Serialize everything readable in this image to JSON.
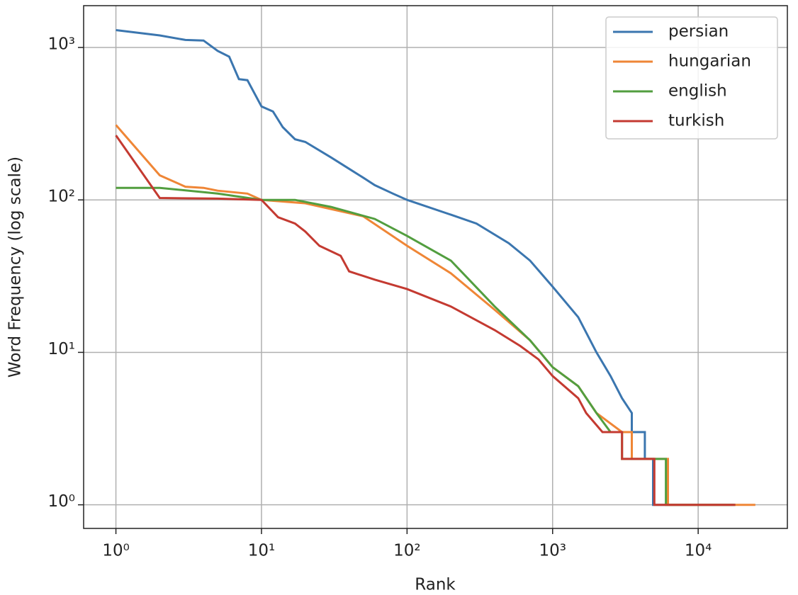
{
  "chart_data": {
    "type": "line",
    "x_label": "Rank",
    "y_label": "Word Frequency (log scale)",
    "xscale": "log",
    "yscale": "log",
    "grid": true,
    "legend": "upper right",
    "xlim": [
      0.6,
      41000
    ],
    "ylim": [
      0.7,
      1880
    ],
    "xticks": [
      {
        "value": 1,
        "label": "10⁰"
      },
      {
        "value": 10,
        "label": "10¹"
      },
      {
        "value": 100,
        "label": "10²"
      },
      {
        "value": 1000,
        "label": "10³"
      },
      {
        "value": 10000,
        "label": "10⁴"
      }
    ],
    "yticks": [
      {
        "value": 1,
        "label": "10⁰"
      },
      {
        "value": 10,
        "label": "10¹"
      },
      {
        "value": 100,
        "label": "10²"
      },
      {
        "value": 1000,
        "label": "10³"
      }
    ],
    "series": [
      {
        "name": "persian",
        "color": "#3b76af",
        "x": [
          1,
          2,
          3,
          4,
          5,
          6,
          7,
          8,
          10,
          12,
          14,
          17,
          20,
          30,
          40,
          50,
          60,
          80,
          100,
          200,
          300,
          500,
          700,
          1000,
          1500,
          2000,
          2500,
          3000,
          3500,
          3500,
          4300,
          4300,
          4900,
          4900,
          17500
        ],
        "values": [
          1300,
          1200,
          1120,
          1110,
          950,
          870,
          620,
          610,
          410,
          380,
          300,
          250,
          240,
          190,
          160,
          140,
          125,
          110,
          100,
          80,
          70,
          52,
          40,
          27,
          17,
          10,
          7,
          5,
          4,
          3,
          3,
          2,
          2,
          1,
          1
        ]
      },
      {
        "name": "hungarian",
        "color": "#ef8636",
        "x": [
          1,
          2,
          3,
          4,
          5,
          8,
          10,
          20,
          50,
          100,
          200,
          400,
          700,
          1000,
          1500,
          2000,
          3000,
          3500,
          3500,
          6200,
          6200,
          24700
        ],
        "values": [
          310,
          145,
          122,
          120,
          115,
          110,
          100,
          95,
          78,
          50,
          33,
          19,
          12,
          8,
          6,
          4,
          3,
          3,
          2,
          2,
          1,
          1
        ]
      },
      {
        "name": "english",
        "color": "#529e3f",
        "x": [
          1,
          2,
          5,
          10,
          17,
          30,
          60,
          100,
          200,
          400,
          700,
          1000,
          1500,
          2000,
          2500,
          3000,
          3000,
          6000,
          6000,
          18000
        ],
        "values": [
          120,
          120,
          110,
          100,
          100,
          90,
          75,
          58,
          40,
          20,
          12,
          8,
          6,
          4,
          3,
          3,
          2,
          2,
          1,
          1
        ]
      },
      {
        "name": "turkish",
        "color": "#c43a31",
        "x": [
          1,
          2,
          5,
          10,
          13,
          17,
          20,
          25,
          35,
          40,
          60,
          100,
          200,
          400,
          600,
          800,
          1000,
          1500,
          1700,
          2200,
          3000,
          3000,
          5000,
          5000,
          18000
        ],
        "values": [
          265,
          103,
          102,
          100,
          77,
          70,
          62,
          50,
          43,
          34,
          30,
          26,
          20,
          14,
          11,
          9,
          7,
          5,
          4,
          3,
          3,
          2,
          2,
          1,
          1
        ]
      }
    ]
  }
}
